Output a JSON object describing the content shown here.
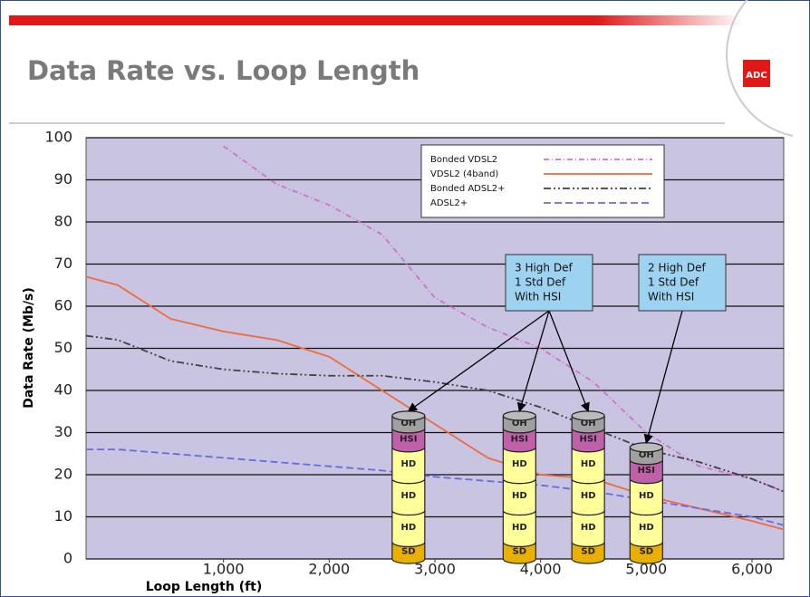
{
  "logo": "ADC",
  "chart_data": {
    "type": "line",
    "title": "Data Rate vs. Loop Length",
    "x_label": "Loop Length (ft)",
    "y_label": "Data Rate (Mb/s)",
    "x": [
      -300,
      0,
      500,
      1000,
      1500,
      2000,
      2500,
      3000,
      3500,
      4000,
      4500,
      5000,
      5500,
      6000,
      6300
    ],
    "series": [
      {
        "name": "Bonded VDSL2",
        "color": "#d070c8",
        "values": [
          null,
          null,
          null,
          98,
          89,
          84,
          77,
          62,
          55,
          50,
          42,
          30,
          22,
          19,
          16
        ]
      },
      {
        "name": "VDSL2 (4band)",
        "color": "#f06a3a",
        "values": [
          67,
          65,
          57,
          54,
          52,
          48,
          40,
          32,
          24,
          20,
          19,
          15,
          12,
          9,
          7
        ]
      },
      {
        "name": "Bonded ADSL2+",
        "color": "#404040",
        "values": [
          53,
          52,
          47,
          45,
          44,
          43.5,
          43.5,
          42,
          40,
          36,
          31,
          26,
          23,
          19,
          16
        ]
      },
      {
        "name": "ADSL2+",
        "color": "#6a6ae0",
        "values": [
          26,
          26,
          25,
          24,
          23,
          22,
          21,
          19.5,
          18.5,
          17.5,
          16,
          14,
          12,
          10,
          8
        ]
      }
    ],
    "xlim": [
      -300,
      6300
    ],
    "ylim": [
      0,
      100
    ],
    "xticks": [
      {
        "value": 1000,
        "label": "1,000"
      },
      {
        "value": 2000,
        "label": "2,000"
      },
      {
        "value": 3000,
        "label": "3,000"
      },
      {
        "value": 4000,
        "label": "4,000"
      },
      {
        "value": 5000,
        "label": "5,000"
      },
      {
        "value": 6000,
        "label": "6,000"
      }
    ],
    "yticks": [
      0,
      10,
      20,
      30,
      40,
      50,
      60,
      70,
      80,
      90,
      100
    ],
    "grid": true,
    "legend": "top-right",
    "stacks": [
      {
        "x": 2750,
        "segments": [
          {
            "label": "SD",
            "value": 4,
            "color": "#e8b000"
          },
          {
            "label": "HD",
            "value": 7.5,
            "color": "#ffff99"
          },
          {
            "label": "HD",
            "value": 7.5,
            "color": "#ffff99"
          },
          {
            "label": "HD",
            "value": 7.5,
            "color": "#ffff99"
          },
          {
            "label": "HSI",
            "value": 4.5,
            "color": "#c060a8"
          },
          {
            "label": "OH",
            "value": 3,
            "color": "#a0a0a0"
          }
        ]
      },
      {
        "x": 3800,
        "segments": [
          {
            "label": "SD",
            "value": 4,
            "color": "#e8b000"
          },
          {
            "label": "HD",
            "value": 7.5,
            "color": "#ffff99"
          },
          {
            "label": "HD",
            "value": 7.5,
            "color": "#ffff99"
          },
          {
            "label": "HD",
            "value": 7.5,
            "color": "#ffff99"
          },
          {
            "label": "HSI",
            "value": 4.5,
            "color": "#c060a8"
          },
          {
            "label": "OH",
            "value": 3,
            "color": "#a0a0a0"
          }
        ]
      },
      {
        "x": 4450,
        "segments": [
          {
            "label": "SD",
            "value": 4,
            "color": "#e8b000"
          },
          {
            "label": "HD",
            "value": 7.5,
            "color": "#ffff99"
          },
          {
            "label": "HD",
            "value": 7.5,
            "color": "#ffff99"
          },
          {
            "label": "HD",
            "value": 7.5,
            "color": "#ffff99"
          },
          {
            "label": "HSI",
            "value": 4.5,
            "color": "#c060a8"
          },
          {
            "label": "OH",
            "value": 3,
            "color": "#a0a0a0"
          }
        ]
      },
      {
        "x": 5000,
        "segments": [
          {
            "label": "SD",
            "value": 4,
            "color": "#e8b000"
          },
          {
            "label": "HD",
            "value": 7.5,
            "color": "#ffff99"
          },
          {
            "label": "HD",
            "value": 7.5,
            "color": "#ffff99"
          },
          {
            "label": "HSI",
            "value": 4.5,
            "color": "#c060a8"
          },
          {
            "label": "OH",
            "value": 3,
            "color": "#a0a0a0"
          }
        ]
      }
    ],
    "callouts": [
      {
        "lines": [
          "3 High Def",
          "1 Std Def",
          "With HSI"
        ]
      },
      {
        "lines": [
          "2 High Def",
          "1 Std Def",
          "With HSI"
        ]
      }
    ]
  }
}
